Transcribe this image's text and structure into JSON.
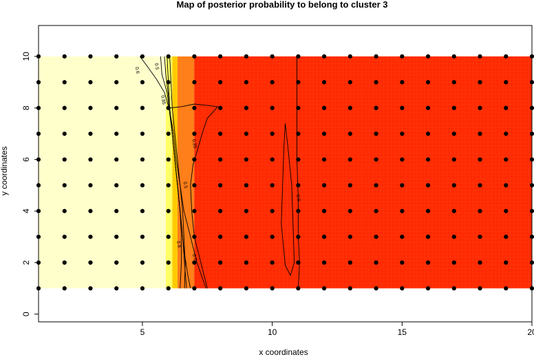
{
  "chart_data": {
    "type": "heatmap",
    "title": "Map of posterior probability to belong to cluster  3",
    "xlabel": "x coordinates",
    "ylabel": "y coordinates",
    "xlim": [
      1,
      20
    ],
    "ylim": [
      -0.3,
      11.2
    ],
    "field_extent": {
      "x": [
        1,
        20
      ],
      "y": [
        1,
        10
      ]
    },
    "x_ticks": [
      5,
      10,
      15,
      20
    ],
    "y_ticks": [
      0,
      2,
      4,
      6,
      8,
      10
    ],
    "grid": false,
    "colors": {
      "low": "#ffffcc",
      "mid_low": "#ffff66",
      "mid": "#ffcc00",
      "mid_high": "#ff7f1a",
      "high": "#ff2a00",
      "points": "#000000",
      "contour": "#000000"
    },
    "color_bands": [
      {
        "from_x": 1,
        "to_x": 5.9,
        "level": "low"
      },
      {
        "from_x": 5.9,
        "to_x": 6.15,
        "level": "mid_low"
      },
      {
        "from_x": 6.15,
        "to_x": 6.35,
        "level": "mid"
      },
      {
        "from_x": 6.35,
        "to_x": 7.0,
        "level": "mid_high"
      },
      {
        "from_x": 7.0,
        "to_x": 20,
        "level": "high"
      }
    ],
    "sample_points": {
      "x": [
        1,
        2,
        3,
        4,
        5,
        6,
        7,
        8,
        9,
        10,
        11,
        12,
        13,
        14,
        15,
        16,
        17,
        18,
        19,
        20
      ],
      "y": [
        1,
        2,
        3,
        4,
        5,
        6,
        7,
        8,
        9,
        10
      ]
    },
    "contour_labels": [
      {
        "text": "0.6",
        "x": 4.75,
        "y": 9.45
      },
      {
        "text": "0.5",
        "x": 5.5,
        "y": 9.6
      },
      {
        "text": "0.85",
        "x": 5.75,
        "y": 8.3
      },
      {
        "text": "0.95",
        "x": 6.95,
        "y": 6.6
      },
      {
        "text": "0.5",
        "x": 6.6,
        "y": 5.0
      },
      {
        "text": "0.8",
        "x": 6.35,
        "y": 2.7
      },
      {
        "text": "0.7",
        "x": 6.95,
        "y": 2.2
      },
      {
        "text": "0.9",
        "x": 10.95,
        "y": 4.5
      }
    ]
  }
}
